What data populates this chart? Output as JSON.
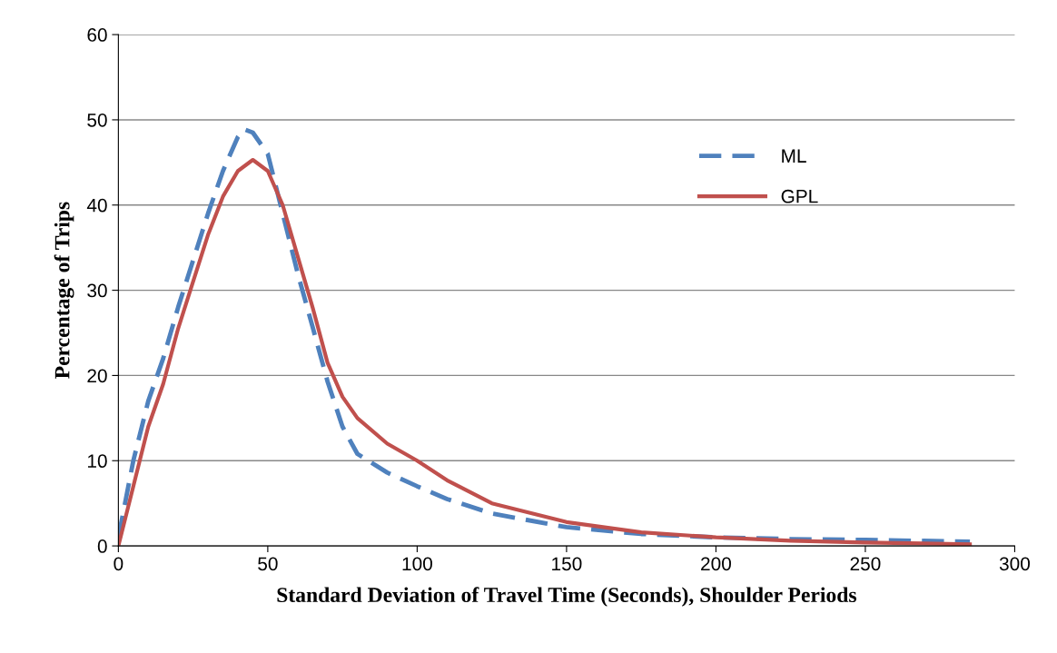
{
  "chart_data": {
    "type": "line",
    "xlabel": "Standard Deviation of Travel Time (Seconds), Shoulder Periods",
    "ylabel": "Percentage of Trips",
    "xlim": [
      0,
      300
    ],
    "xticks": [
      0,
      50,
      100,
      150,
      200,
      250,
      300
    ],
    "ylim": [
      0,
      60
    ],
    "yticks": [
      0,
      10,
      20,
      30,
      40,
      50,
      60
    ],
    "grid": "y",
    "legend": "right",
    "marker": "none",
    "series": [
      {
        "name": "ML",
        "color": "#4f81bd",
        "line_style": "dashed",
        "x": [
          0,
          5,
          10,
          15,
          20,
          25,
          30,
          35,
          40,
          42,
          45,
          50,
          55,
          60,
          65,
          70,
          75,
          80,
          90,
          100,
          110,
          125,
          150,
          175,
          200,
          225,
          250,
          285
        ],
        "values": [
          1,
          10,
          17,
          22,
          28,
          33.5,
          39,
          44,
          48,
          48.9,
          48.5,
          46,
          39,
          32,
          25.7,
          19.3,
          14,
          10.8,
          8.6,
          7,
          5.5,
          3.8,
          2.2,
          1.4,
          1.0,
          0.8,
          0.7,
          0.5
        ]
      },
      {
        "name": "GPL",
        "color": "#c0504d",
        "line_style": "solid",
        "x": [
          0,
          5,
          10,
          15,
          20,
          25,
          30,
          35,
          40,
          45,
          50,
          55,
          60,
          65,
          70,
          75,
          80,
          90,
          100,
          110,
          125,
          150,
          175,
          200,
          225,
          250,
          285
        ],
        "values": [
          0,
          7,
          14,
          19,
          25.5,
          31,
          36.5,
          41,
          44,
          45.3,
          44,
          40,
          34,
          28,
          21.5,
          17.5,
          15,
          12,
          10,
          7.7,
          5,
          2.8,
          1.6,
          1.0,
          0.6,
          0.4,
          0.2
        ]
      }
    ]
  }
}
